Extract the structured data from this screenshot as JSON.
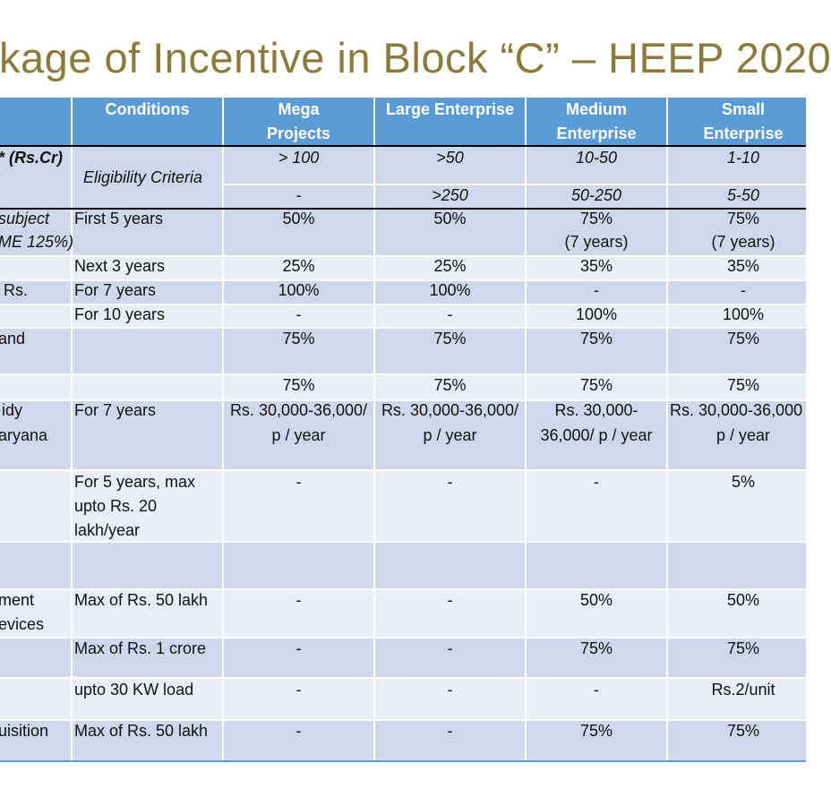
{
  "title": "kage of Incentive in Block “C” – HEEP 2020",
  "colors": {
    "title": "#8c7a3a",
    "header_bg": "#5b9bd5",
    "row_dark": "#cfd8ea",
    "row_light": "#e9edf6",
    "divider": "#000000",
    "bottom_border": "#5b9bd5"
  },
  "header": {
    "col0": "",
    "col1": "Conditions",
    "col2": [
      "Mega",
      "Projects"
    ],
    "col3": [
      "Large Enterprise",
      ""
    ],
    "col4": [
      "Medium",
      "Enterprise"
    ],
    "col5": [
      "Small",
      "Enterprise"
    ]
  },
  "rows": {
    "r1": {
      "c0": "* (Rs.Cr)",
      "c1": "Eligibility Criteria",
      "c2": "> 100",
      "c3": ">50",
      "c4": "10-50",
      "c5": "1-10"
    },
    "r2": {
      "c2": "-",
      "c3": ">250",
      "c4": "50-250",
      "c5": "5-50"
    },
    "r3": {
      "c0a": "subject",
      "c0b": "ME 125%)",
      "c1": "First 5 years",
      "c2": "50%",
      "c3": "50%",
      "c4a": "75%",
      "c4b": "(7 years)",
      "c5a": "75%",
      "c5b": "(7 years)"
    },
    "r4": {
      "c1": "Next 3 years",
      "c2": "25%",
      "c3": "25%",
      "c4": "35%",
      "c5": "35%"
    },
    "r5": {
      "c0": "Rs.",
      "c1": "For 7 years",
      "c2": "100%",
      "c3": "100%",
      "c4": "-",
      "c5": "-"
    },
    "r6": {
      "c1": "For 10 years",
      "c2": "-",
      "c3": "-",
      "c4": "100%",
      "c5": "100%"
    },
    "r7": {
      "c0": "and",
      "c2": "75%",
      "c3": "75%",
      "c4": "75%",
      "c5": "75%"
    },
    "r8": {
      "c2": "75%",
      "c3": "75%",
      "c4": "75%",
      "c5": "75%"
    },
    "r9": {
      "c0a": "idy",
      "c0b": "aryana",
      "c1": "For 7 years",
      "c2a": "Rs. 30,000-36,000/",
      "c2b": "p / year",
      "c3a": "Rs. 30,000-36,000/",
      "c3b": "p / year",
      "c4a": "Rs. 30,000-",
      "c4b": "36,000/ p / year",
      "c5a": "Rs. 30,000-36,000",
      "c5b": "p / year"
    },
    "r10": {
      "c1a": "For 5 years, max",
      "c1b": "upto Rs. 20",
      "c1c": "lakh/year",
      "c2": "-",
      "c3": "-",
      "c4": "-",
      "c5": "5%"
    },
    "r12": {
      "c0a": "ment",
      "c0b": "evices",
      "c1": "Max of Rs. 50 lakh",
      "c2": "-",
      "c3": "-",
      "c4": "50%",
      "c5": "50%"
    },
    "r13": {
      "c1": "Max of Rs. 1 crore",
      "c2": "-",
      "c3": "-",
      "c4": "75%",
      "c5": "75%"
    },
    "r14": {
      "c1": "upto 30 KW load",
      "c2": "-",
      "c3": "-",
      "c4": "-",
      "c5": "Rs.2/unit"
    },
    "r15": {
      "c0": "uisition",
      "c1": "Max of Rs. 50 lakh",
      "c2": "-",
      "c3": "-",
      "c4": "75%",
      "c5": "75%"
    }
  }
}
